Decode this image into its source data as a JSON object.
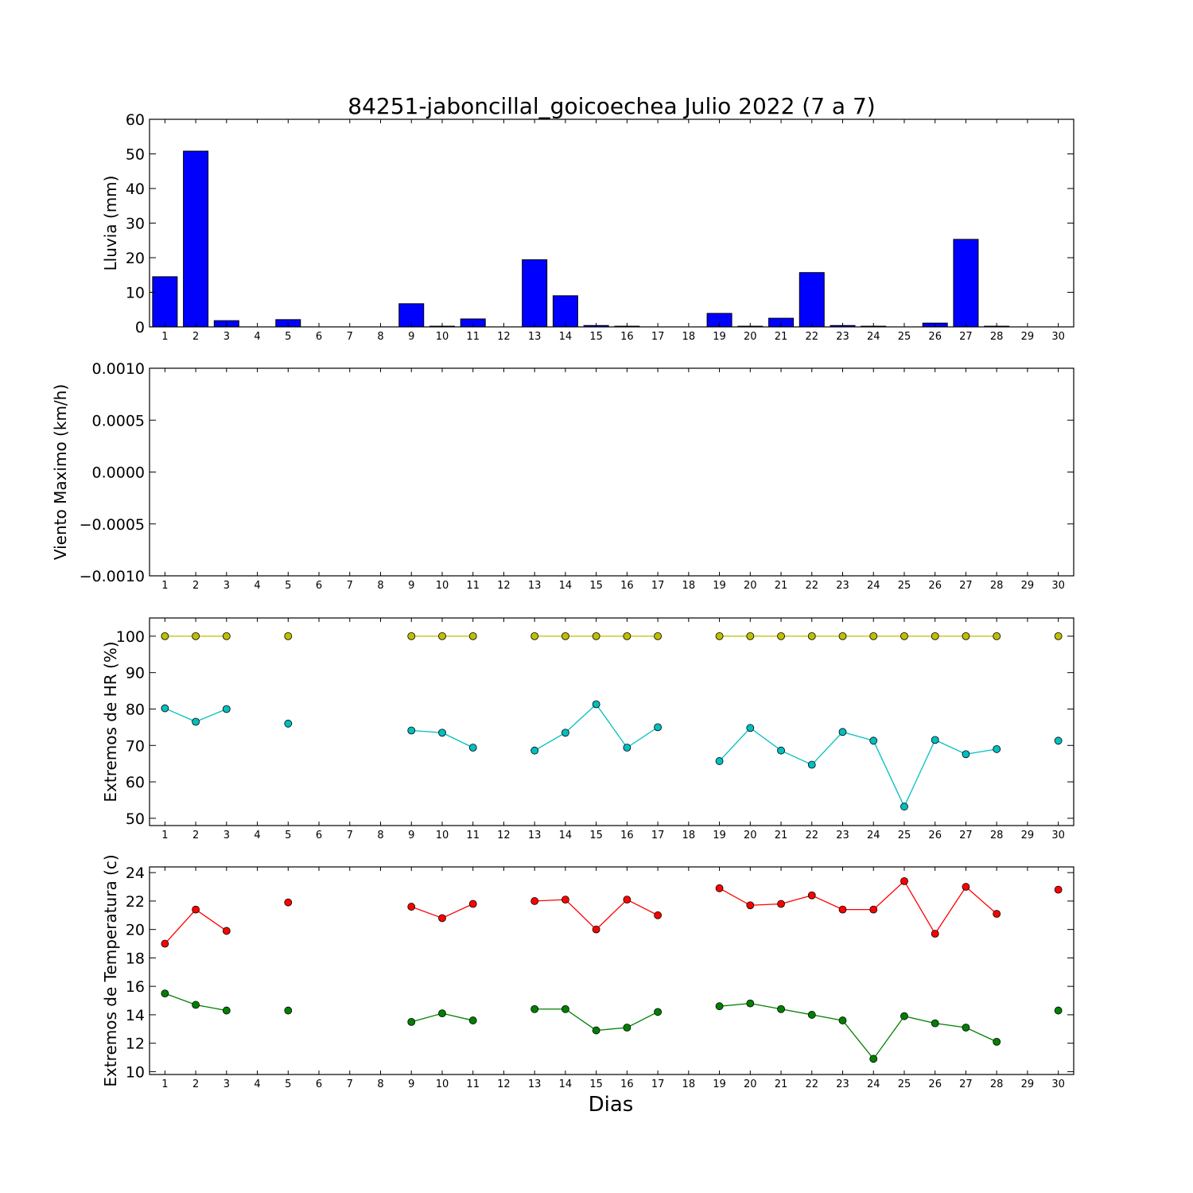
{
  "figure": {
    "title": "84251-jaboncillal_goicoechea Julio 2022  (7 a 7)",
    "xlabel": "Dias"
  },
  "chart_data": [
    {
      "id": "lluvia",
      "type": "bar",
      "ylabel": "Lluvia (mm)",
      "xlim": [
        0.5,
        30.5
      ],
      "ylim": [
        0,
        60
      ],
      "yticks": [
        "0",
        "10",
        "20",
        "30",
        "40",
        "50",
        "60"
      ],
      "ytick_values": [
        0,
        10,
        20,
        30,
        40,
        50,
        60
      ],
      "xticks": [
        1,
        2,
        3,
        4,
        5,
        6,
        7,
        8,
        9,
        10,
        11,
        12,
        13,
        14,
        15,
        16,
        17,
        18,
        19,
        20,
        21,
        22,
        23,
        24,
        25,
        26,
        27,
        28,
        29,
        30
      ],
      "grid": false,
      "series": [
        {
          "color": "#0000ff",
          "x": [
            1,
            2,
            3,
            5,
            9,
            10,
            11,
            13,
            14,
            15,
            16,
            19,
            20,
            21,
            22,
            23,
            24,
            26,
            27,
            28
          ],
          "values": [
            14.5,
            50.8,
            1.8,
            2.1,
            6.7,
            0.2,
            2.3,
            19.4,
            9.0,
            0.4,
            0.2,
            3.9,
            0.2,
            2.5,
            15.7,
            0.4,
            0.2,
            1.1,
            25.3,
            0.2
          ]
        }
      ]
    },
    {
      "id": "viento",
      "type": "line",
      "ylabel": "Viento Maximo (km/h)",
      "xlim": [
        0.5,
        30.5
      ],
      "ylim": [
        -0.001,
        0.001
      ],
      "yticks": [
        "−0.0010",
        "−0.0005",
        "0.0000",
        "0.0005",
        "0.0010"
      ],
      "ytick_values": [
        -0.001,
        -0.0005,
        0,
        0.0005,
        0.001
      ],
      "xticks": [
        1,
        2,
        3,
        4,
        5,
        6,
        7,
        8,
        9,
        10,
        11,
        12,
        13,
        14,
        15,
        16,
        17,
        18,
        19,
        20,
        21,
        22,
        23,
        24,
        25,
        26,
        27,
        28,
        29,
        30
      ],
      "grid": false,
      "series": []
    },
    {
      "id": "hr",
      "type": "line",
      "ylabel": "Extremos de HR (%)",
      "xlim": [
        0.5,
        30.5
      ],
      "ylim": [
        48,
        105
      ],
      "yticks": [
        "50",
        "60",
        "70",
        "80",
        "90",
        "100"
      ],
      "ytick_values": [
        50,
        60,
        70,
        80,
        90,
        100
      ],
      "xticks": [
        1,
        2,
        3,
        4,
        5,
        6,
        7,
        8,
        9,
        10,
        11,
        12,
        13,
        14,
        15,
        16,
        17,
        18,
        19,
        20,
        21,
        22,
        23,
        24,
        25,
        26,
        27,
        28,
        29,
        30
      ],
      "grid": false,
      "series": [
        {
          "color": "#bfbf00",
          "x": [
            1,
            2,
            3,
            4,
            5,
            6,
            7,
            8,
            9,
            10,
            11,
            12,
            13,
            14,
            15,
            16,
            17,
            18,
            19,
            20,
            21,
            22,
            23,
            24,
            25,
            26,
            27,
            28,
            29,
            30
          ],
          "values": [
            100,
            100,
            100,
            null,
            100,
            null,
            null,
            null,
            100,
            100,
            100,
            null,
            100,
            100,
            100,
            100,
            100,
            null,
            100,
            100,
            100,
            100,
            100,
            100,
            100,
            100,
            100,
            100,
            null,
            100
          ]
        },
        {
          "color": "#00bfbf",
          "x": [
            1,
            2,
            3,
            4,
            5,
            6,
            7,
            8,
            9,
            10,
            11,
            12,
            13,
            14,
            15,
            16,
            17,
            18,
            19,
            20,
            21,
            22,
            23,
            24,
            25,
            26,
            27,
            28,
            29,
            30
          ],
          "values": [
            80.2,
            76.5,
            80.0,
            null,
            76.0,
            null,
            null,
            null,
            74.1,
            73.5,
            69.4,
            null,
            68.6,
            73.5,
            81.3,
            69.4,
            75.0,
            null,
            65.7,
            74.8,
            68.6,
            64.7,
            73.7,
            71.3,
            53.2,
            71.5,
            67.6,
            69.0,
            null,
            71.3
          ]
        }
      ]
    },
    {
      "id": "temperatura",
      "type": "line",
      "ylabel": "Extremos de Temperatura (c)",
      "xlim": [
        0.5,
        30.5
      ],
      "ylim": [
        9.8,
        24.4
      ],
      "yticks": [
        "10",
        "12",
        "14",
        "16",
        "18",
        "20",
        "22",
        "24"
      ],
      "ytick_values": [
        10,
        12,
        14,
        16,
        18,
        20,
        22,
        24
      ],
      "xticks": [
        1,
        2,
        3,
        4,
        5,
        6,
        7,
        8,
        9,
        10,
        11,
        12,
        13,
        14,
        15,
        16,
        17,
        18,
        19,
        20,
        21,
        22,
        23,
        24,
        25,
        26,
        27,
        28,
        29,
        30
      ],
      "grid": false,
      "series": [
        {
          "color": "#ff0000",
          "x": [
            1,
            2,
            3,
            4,
            5,
            6,
            7,
            8,
            9,
            10,
            11,
            12,
            13,
            14,
            15,
            16,
            17,
            18,
            19,
            20,
            21,
            22,
            23,
            24,
            25,
            26,
            27,
            28,
            29,
            30
          ],
          "values": [
            19.0,
            21.4,
            19.9,
            null,
            21.9,
            null,
            null,
            null,
            21.6,
            20.8,
            21.8,
            null,
            22.0,
            22.1,
            20.0,
            22.1,
            21.0,
            null,
            22.9,
            21.7,
            21.8,
            22.4,
            21.4,
            21.4,
            23.4,
            19.7,
            23.0,
            21.1,
            null,
            22.8
          ]
        },
        {
          "color": "#008000",
          "x": [
            1,
            2,
            3,
            4,
            5,
            6,
            7,
            8,
            9,
            10,
            11,
            12,
            13,
            14,
            15,
            16,
            17,
            18,
            19,
            20,
            21,
            22,
            23,
            24,
            25,
            26,
            27,
            28,
            29,
            30
          ],
          "values": [
            15.5,
            14.7,
            14.3,
            null,
            14.3,
            null,
            null,
            null,
            13.5,
            14.1,
            13.6,
            null,
            14.4,
            14.4,
            12.9,
            13.1,
            14.2,
            null,
            14.6,
            14.8,
            14.4,
            14.0,
            13.6,
            10.9,
            13.9,
            13.4,
            13.1,
            12.1,
            null,
            14.3
          ]
        }
      ]
    }
  ]
}
